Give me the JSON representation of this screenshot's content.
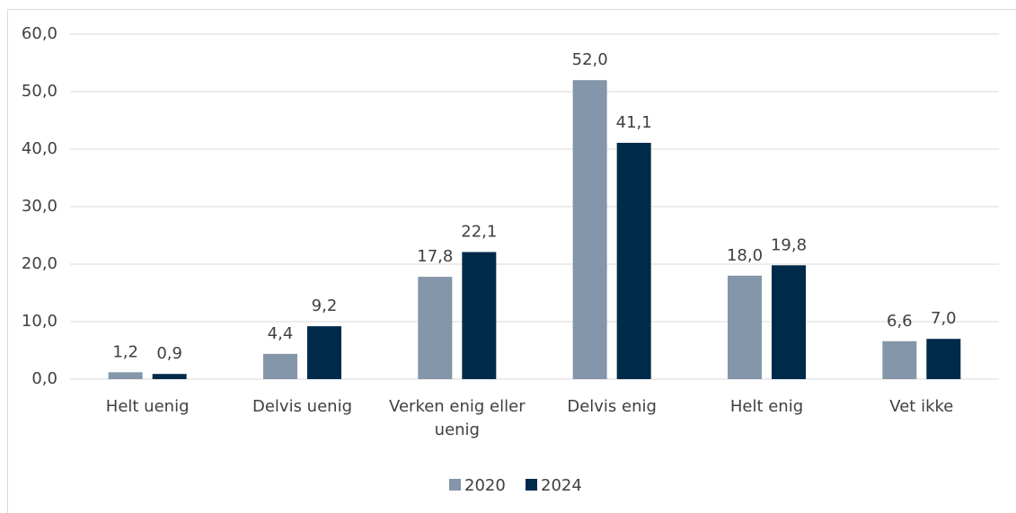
{
  "chart_data": {
    "type": "bar",
    "categories": [
      "Helt uenig",
      "Delvis uenig",
      "Verken enig eller uenig",
      "Delvis enig",
      "Helt enig",
      "Vet ikke"
    ],
    "series": [
      {
        "name": "2020",
        "color": "#8496a9",
        "values": [
          1.2,
          4.4,
          17.8,
          52.0,
          18.0,
          6.6
        ],
        "value_labels": [
          "1,2",
          "4,4",
          "17,8",
          "52,0",
          "18,0",
          "6,6"
        ]
      },
      {
        "name": "2024",
        "color": "#002a4a",
        "values": [
          0.9,
          9.2,
          22.1,
          41.1,
          19.8,
          7.0
        ],
        "value_labels": [
          "0,9",
          "9,2",
          "22,1",
          "41,1",
          "19,8",
          "7,0"
        ]
      }
    ],
    "ylim": [
      0,
      60
    ],
    "yticks": [
      {
        "value": 0,
        "label": "0,0"
      },
      {
        "value": 10,
        "label": "10,0"
      },
      {
        "value": 20,
        "label": "20,0"
      },
      {
        "value": 30,
        "label": "30,0"
      },
      {
        "value": 40,
        "label": "40,0"
      },
      {
        "value": 50,
        "label": "50,0"
      },
      {
        "value": 60,
        "label": "60,0"
      }
    ],
    "grid": true,
    "legend": "bottom"
  }
}
